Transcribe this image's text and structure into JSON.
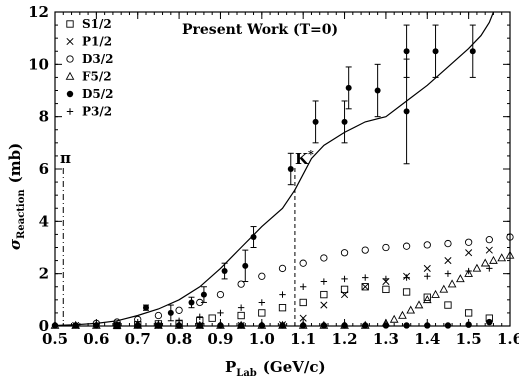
{
  "chart_data": {
    "type": "scatter",
    "title": "Present Work (T=0)",
    "xlabel": {
      "main": "P",
      "sub": "Lab",
      "units": "(GeV/c)"
    },
    "ylabel": {
      "main": "σ",
      "sub": "Reaction",
      "units": "(mb)"
    },
    "xlim": [
      0.5,
      1.6
    ],
    "ylim": [
      0,
      12
    ],
    "x_ticks": [
      0.5,
      0.6,
      0.7,
      0.8,
      0.9,
      1.0,
      1.1,
      1.2,
      1.3,
      1.4,
      1.5,
      1.6
    ],
    "x_tick_labels": [
      "0.5",
      "0.6",
      "0.7",
      "0.8",
      "0.9",
      "1.0",
      "1.1",
      "1.2",
      "1.3",
      "1.4",
      "1.5",
      "1.6"
    ],
    "y_ticks": [
      0,
      2,
      4,
      6,
      8,
      10,
      12
    ],
    "y_tick_labels": [
      "0",
      "2",
      "4",
      "6",
      "8",
      "10",
      "12"
    ],
    "legend_position": "top-left",
    "series": [
      {
        "name": "S1/2",
        "marker": "square",
        "x": [
          0.65,
          0.7,
          0.75,
          0.8,
          0.85,
          0.88,
          0.95,
          1.0,
          1.05,
          1.1,
          1.15,
          1.2,
          1.25,
          1.3,
          1.35,
          1.4,
          1.45,
          1.5,
          1.55
        ],
        "y": [
          0.02,
          0.05,
          0.08,
          0.1,
          0.2,
          0.3,
          0.4,
          0.5,
          0.7,
          0.9,
          1.2,
          1.4,
          1.5,
          1.4,
          1.3,
          1.1,
          0.8,
          0.5,
          0.3
        ]
      },
      {
        "name": "P1/2",
        "marker": "x",
        "x": [
          0.55,
          0.65,
          0.75,
          0.85,
          0.95,
          1.05,
          1.1,
          1.15,
          1.2,
          1.25,
          1.3,
          1.35,
          1.4,
          1.45,
          1.5,
          1.55
        ],
        "y": [
          0.02,
          0.02,
          0.02,
          0.02,
          0.02,
          0.05,
          0.3,
          0.8,
          1.2,
          1.5,
          1.7,
          1.9,
          2.2,
          2.5,
          2.8,
          2.9
        ]
      },
      {
        "name": "D3/2",
        "marker": "circle",
        "x": [
          0.6,
          0.65,
          0.7,
          0.75,
          0.8,
          0.85,
          0.9,
          0.95,
          1.0,
          1.05,
          1.1,
          1.15,
          1.2,
          1.25,
          1.3,
          1.35,
          1.4,
          1.45,
          1.5,
          1.55,
          1.6
        ],
        "y": [
          0.1,
          0.15,
          0.25,
          0.4,
          0.6,
          0.9,
          1.2,
          1.6,
          1.9,
          2.2,
          2.4,
          2.6,
          2.8,
          2.9,
          3.0,
          3.05,
          3.1,
          3.15,
          3.2,
          3.3,
          3.4
        ]
      },
      {
        "name": "F5/2",
        "marker": "triangle",
        "x": [
          0.5,
          0.55,
          0.6,
          0.65,
          0.7,
          0.75,
          0.8,
          0.85,
          0.9,
          0.95,
          1.0,
          1.05,
          1.1,
          1.15,
          1.2,
          1.25,
          1.3,
          1.32,
          1.34,
          1.36,
          1.38,
          1.4,
          1.42,
          1.44,
          1.46,
          1.48,
          1.5,
          1.52,
          1.54,
          1.56,
          1.58,
          1.6
        ],
        "y": [
          0.02,
          0.02,
          0.02,
          0.02,
          0.02,
          0.02,
          0.02,
          0.02,
          0.02,
          0.02,
          0.02,
          0.02,
          0.02,
          0.02,
          0.02,
          0.02,
          0.1,
          0.25,
          0.4,
          0.6,
          0.8,
          1.0,
          1.2,
          1.4,
          1.6,
          1.8,
          2.0,
          2.2,
          2.4,
          2.5,
          2.6,
          2.7
        ]
      },
      {
        "name": "D5/2",
        "marker": "filled-circle",
        "x": [
          0.5,
          0.55,
          0.6,
          0.65,
          0.7,
          0.75,
          0.8,
          0.85,
          0.9,
          0.95,
          1.0,
          1.05,
          1.1,
          1.15,
          1.2,
          1.25,
          1.3,
          1.35,
          1.4,
          1.45,
          1.5,
          1.55
        ],
        "y": [
          0.02,
          0.02,
          0.02,
          0.02,
          0.02,
          0.02,
          0.02,
          0.02,
          0.02,
          0.02,
          0.02,
          0.02,
          0.02,
          0.02,
          0.02,
          0.02,
          0.02,
          0.02,
          0.02,
          0.02,
          0.05,
          0.15
        ]
      },
      {
        "name": "P3/2",
        "marker": "plus",
        "x": [
          0.7,
          0.75,
          0.8,
          0.85,
          0.9,
          0.95,
          1.0,
          1.05,
          1.1,
          1.15,
          1.2,
          1.25,
          1.3,
          1.35,
          1.4,
          1.45,
          1.5,
          1.55
        ],
        "y": [
          0.05,
          0.1,
          0.2,
          0.35,
          0.5,
          0.7,
          0.9,
          1.2,
          1.5,
          1.7,
          1.8,
          1.85,
          1.8,
          1.85,
          1.9,
          2.0,
          2.1,
          2.2
        ]
      }
    ],
    "experimental": {
      "x": [
        0.72,
        0.78,
        0.83,
        0.86,
        0.91,
        0.96,
        0.98,
        1.07,
        1.13,
        1.2,
        1.21,
        1.28,
        1.35,
        1.35,
        1.42,
        1.51
      ],
      "y": [
        0.7,
        0.5,
        0.9,
        1.2,
        2.1,
        2.3,
        3.4,
        6.0,
        7.8,
        7.8,
        9.1,
        9.0,
        10.5,
        8.2,
        10.5,
        10.5
      ],
      "err": [
        0.1,
        0.3,
        0.2,
        0.3,
        0.3,
        0.6,
        0.4,
        0.6,
        0.8,
        0.8,
        0.8,
        1.0,
        1.0,
        2.0,
        1.0,
        1.0
      ]
    },
    "total_curve": {
      "x": [
        0.5,
        0.55,
        0.6,
        0.65,
        0.7,
        0.75,
        0.8,
        0.85,
        0.9,
        0.95,
        1.0,
        1.05,
        1.08,
        1.1,
        1.12,
        1.15,
        1.2,
        1.25,
        1.3,
        1.35,
        1.4,
        1.45,
        1.5,
        1.53,
        1.55,
        1.56
      ],
      "y": [
        0.02,
        0.05,
        0.1,
        0.2,
        0.4,
        0.65,
        1.0,
        1.5,
        2.2,
        3.0,
        3.8,
        4.5,
        5.2,
        5.8,
        6.4,
        6.9,
        7.4,
        7.8,
        8.0,
        8.6,
        9.2,
        9.9,
        10.6,
        11.1,
        11.6,
        12.0
      ]
    },
    "annotations": [
      {
        "text": "π",
        "x": 0.52,
        "line": "dash-dot"
      },
      {
        "text": "K",
        "sup": "*",
        "x": 1.08,
        "line": "dashed"
      }
    ]
  }
}
